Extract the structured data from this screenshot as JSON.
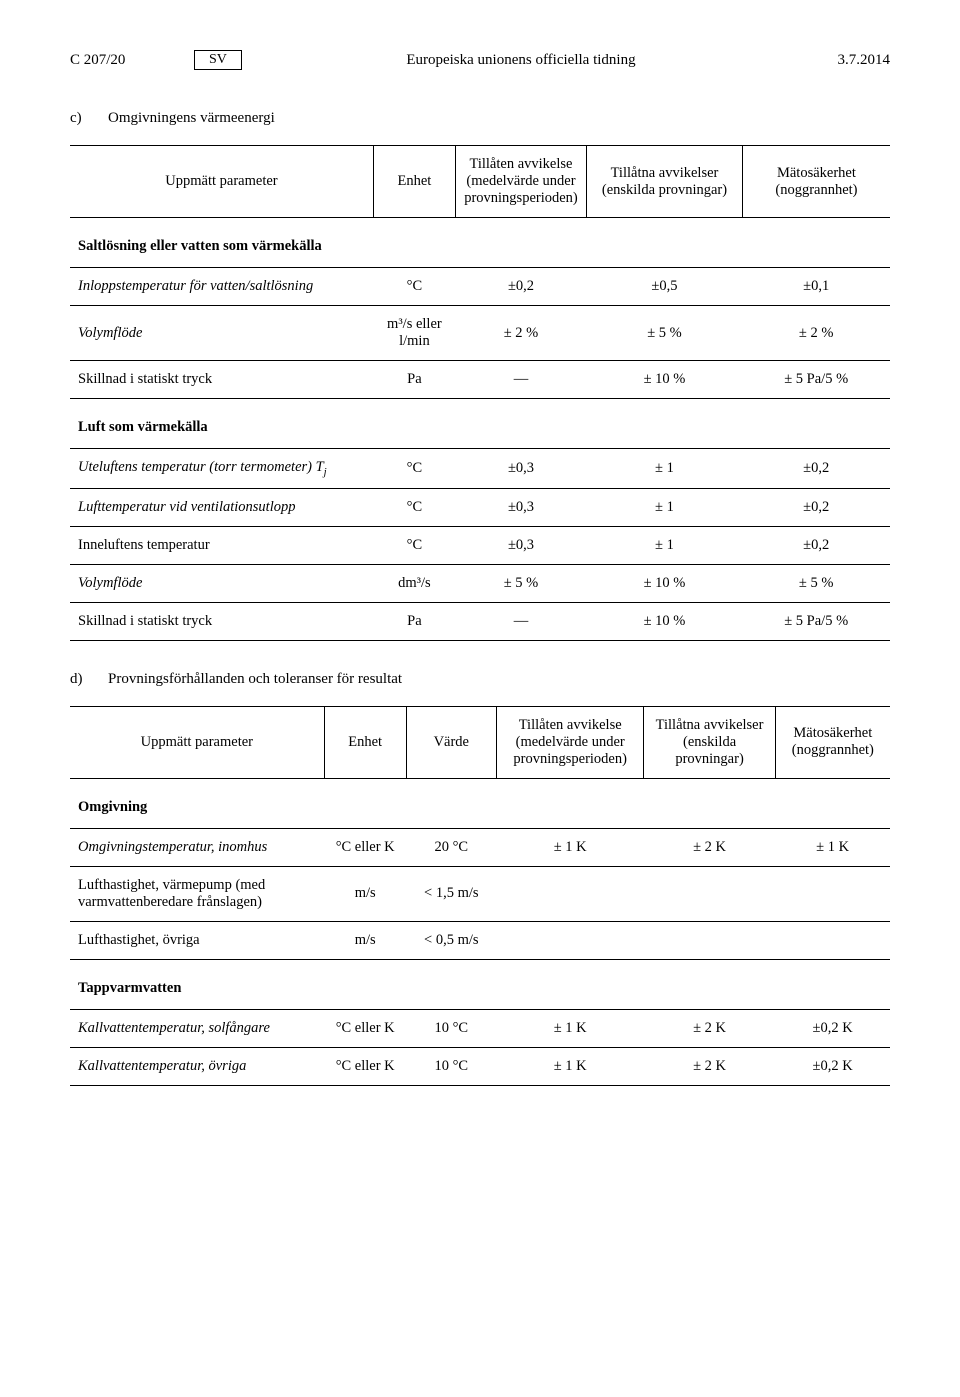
{
  "header": {
    "left": "C 207/20",
    "lang": "SV",
    "center": "Europeiska unionens officiella tidning",
    "right": "3.7.2014"
  },
  "section_c": {
    "letter": "c)",
    "title": "Omgivningens värmeenergi",
    "headers": {
      "param": "Uppmätt parameter",
      "unit": "Enhet",
      "dev_avg": "Tillåten avvikelse (medelvärde under provningsperioden)",
      "dev_ind": "Tillåtna avvikelser (enskilda provningar)",
      "uncert": "Mätosäkerhet (noggrannhet)"
    },
    "group1": {
      "title": "Saltlösning eller vatten som värmekälla",
      "rows": [
        {
          "param": "Inloppstemperatur för vatten/saltlösning",
          "italic": true,
          "unit": "°C",
          "a": "±0,2",
          "b": "±0,5",
          "c": "±0,1"
        },
        {
          "param": "Volymflöde",
          "italic": true,
          "unit": "m³/s eller l/min",
          "a": "± 2 %",
          "b": "± 5 %",
          "c": "± 2 %"
        },
        {
          "param": "Skillnad i statiskt tryck",
          "italic": false,
          "unit": "Pa",
          "a": "—",
          "b": "± 10 %",
          "c": "± 5 Pa/5 %"
        }
      ]
    },
    "group2": {
      "title": "Luft som värmekälla",
      "rows": [
        {
          "param_html": "Uteluftens temperatur (torr termometer) T<span class=\"sub\">j</span>",
          "italic": true,
          "unit": "°C",
          "a": "±0,3",
          "b": "± 1",
          "c": "±0,2"
        },
        {
          "param": "Lufttemperatur vid ventilationsutlopp",
          "italic": true,
          "unit": "°C",
          "a": "±0,3",
          "b": "± 1",
          "c": "±0,2"
        },
        {
          "param": "Inneluftens temperatur",
          "italic": false,
          "unit": "°C",
          "a": "±0,3",
          "b": "± 1",
          "c": "±0,2"
        },
        {
          "param": "Volymflöde",
          "italic": true,
          "unit": "dm³/s",
          "a": "± 5 %",
          "b": "± 10 %",
          "c": "± 5 %"
        },
        {
          "param": "Skillnad i statiskt tryck",
          "italic": false,
          "unit": "Pa",
          "a": "—",
          "b": "± 10 %",
          "c": "± 5 Pa/5 %"
        }
      ]
    }
  },
  "section_d": {
    "letter": "d)",
    "title": "Provningsförhållanden och toleranser för resultat",
    "headers": {
      "param": "Uppmätt parameter",
      "unit": "Enhet",
      "value": "Värde",
      "dev_avg": "Tillåten avvikelse (medelvärde under provningsperioden)",
      "dev_ind": "Tillåtna avvikelser (enskilda provningar)",
      "uncert": "Mätosäkerhet (noggrannhet)"
    },
    "group1": {
      "title": "Omgivning",
      "rows": [
        {
          "param": "Omgivningstemperatur, inomhus",
          "italic": true,
          "unit": "°C eller K",
          "val": "20 °C",
          "a": "± 1 K",
          "b": "± 2 K",
          "c": "± 1 K"
        },
        {
          "param": "Lufthastighet, värmepump (med varmvattenberedare frånslagen)",
          "italic": false,
          "unit": "m/s",
          "val": "< 1,5 m/s",
          "a": "",
          "b": "",
          "c": ""
        },
        {
          "param": "Lufthastighet, övriga",
          "italic": false,
          "unit": "m/s",
          "val": "< 0,5 m/s",
          "a": "",
          "b": "",
          "c": ""
        }
      ]
    },
    "group2": {
      "title": "Tappvarmvatten",
      "rows": [
        {
          "param": "Kallvattentemperatur, solfångare",
          "italic": true,
          "unit": "°C eller K",
          "val": "10 °C",
          "a": "± 1 K",
          "b": "± 2 K",
          "c": "±0,2 K"
        },
        {
          "param": "Kallvattentemperatur, övriga",
          "italic": true,
          "unit": "°C eller K",
          "val": "10 °C",
          "a": "± 1 K",
          "b": "± 2 K",
          "c": "±0,2 K"
        }
      ]
    }
  }
}
